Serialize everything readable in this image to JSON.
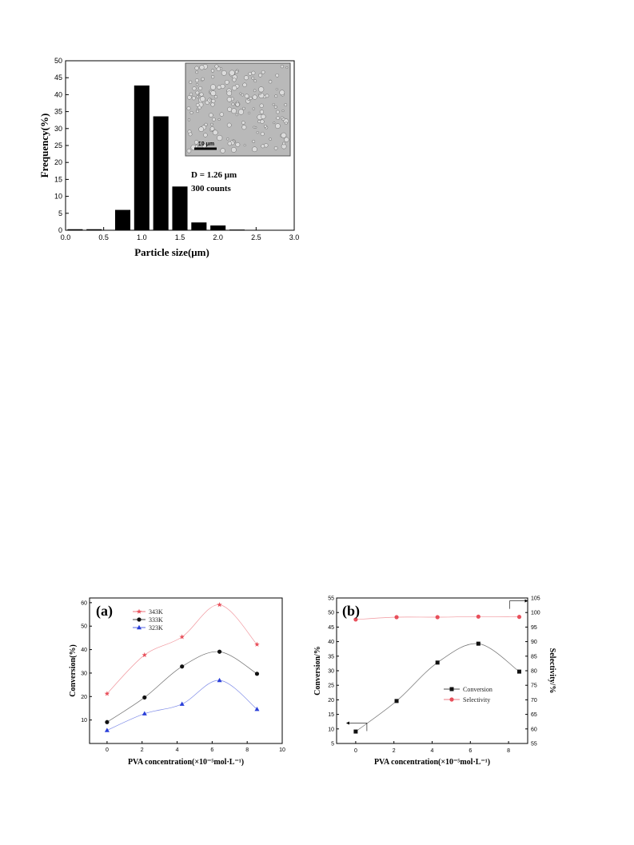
{
  "chart_data": [
    {
      "type": "bar",
      "xlabel": "Particle size(μm)",
      "ylabel": "Frequency(%)",
      "xlim": [
        0.0,
        3.0
      ],
      "ylim": [
        0,
        50
      ],
      "xticks": [
        "0.0",
        "0.5",
        "1.0",
        "1.5",
        "2.0",
        "2.5",
        "3.0"
      ],
      "yticks": [
        "0",
        "5",
        "10",
        "15",
        "20",
        "25",
        "30",
        "35",
        "40",
        "45",
        "50"
      ],
      "x": [
        0.125,
        0.375,
        0.75,
        1.0,
        1.25,
        1.5,
        1.75,
        2.0,
        2.25,
        2.5
      ],
      "values": [
        0.3,
        0.3,
        6.0,
        42.7,
        33.6,
        12.9,
        2.3,
        1.4,
        0.2,
        0.0
      ],
      "annotations": [
        "D = 1.26 μm",
        "300 counts"
      ],
      "inset_scale_label": "10 μm",
      "grid": false
    },
    {
      "type": "line",
      "panel_label": "(a)",
      "xlabel": "PVA concentration(×10⁻⁵mol·L⁻¹)",
      "ylabel": "Conversion(%)",
      "xlim": [
        -1,
        10
      ],
      "ylim": [
        0,
        62
      ],
      "xticks": [
        "0",
        "2",
        "4",
        "6",
        "8",
        "10"
      ],
      "yticks": [
        "10",
        "20",
        "30",
        "40",
        "50",
        "60"
      ],
      "x": [
        0,
        2.14,
        4.28,
        6.42,
        8.56
      ],
      "series": [
        {
          "name": "343K",
          "values": [
            21.2,
            37.7,
            45.4,
            59.1,
            42.2
          ],
          "color": "#e8505b",
          "marker": "star"
        },
        {
          "name": "333K",
          "values": [
            9.1,
            19.6,
            32.8,
            39.1,
            29.7
          ],
          "color": "#111111",
          "marker": "circle"
        },
        {
          "name": "323K",
          "values": [
            5.6,
            12.7,
            16.8,
            26.9,
            14.6
          ],
          "color": "#2a3fd9",
          "marker": "triangle"
        }
      ],
      "legend_position": "top-left",
      "grid": false
    },
    {
      "type": "line",
      "panel_label": "(b)",
      "xlabel": "PVA concentration(×10⁻⁵mol·L⁻¹)",
      "ylabel": "Conversion/%",
      "y2label": "Selectivity/%",
      "xlim": [
        -1,
        9
      ],
      "ylim": [
        5,
        55
      ],
      "y2lim": [
        55,
        105
      ],
      "xticks": [
        "0",
        "2",
        "4",
        "6",
        "8"
      ],
      "yticks": [
        "5",
        "10",
        "15",
        "20",
        "25",
        "30",
        "35",
        "40",
        "45",
        "50",
        "55"
      ],
      "y2ticks": [
        "55",
        "60",
        "65",
        "70",
        "75",
        "80",
        "85",
        "90",
        "95",
        "100",
        "105"
      ],
      "x": [
        0,
        2.14,
        4.28,
        6.42,
        8.56
      ],
      "series": [
        {
          "name": "Conversion",
          "values": [
            9.1,
            19.6,
            32.8,
            39.3,
            29.7
          ],
          "color": "#111111",
          "marker": "square",
          "axis": "left"
        },
        {
          "name": "Selectivity",
          "values": [
            97.6,
            98.4,
            98.4,
            98.6,
            98.5
          ],
          "color": "#e8505b",
          "marker": "circle",
          "axis": "right"
        }
      ],
      "legend_position": "center-right",
      "grid": false
    }
  ]
}
